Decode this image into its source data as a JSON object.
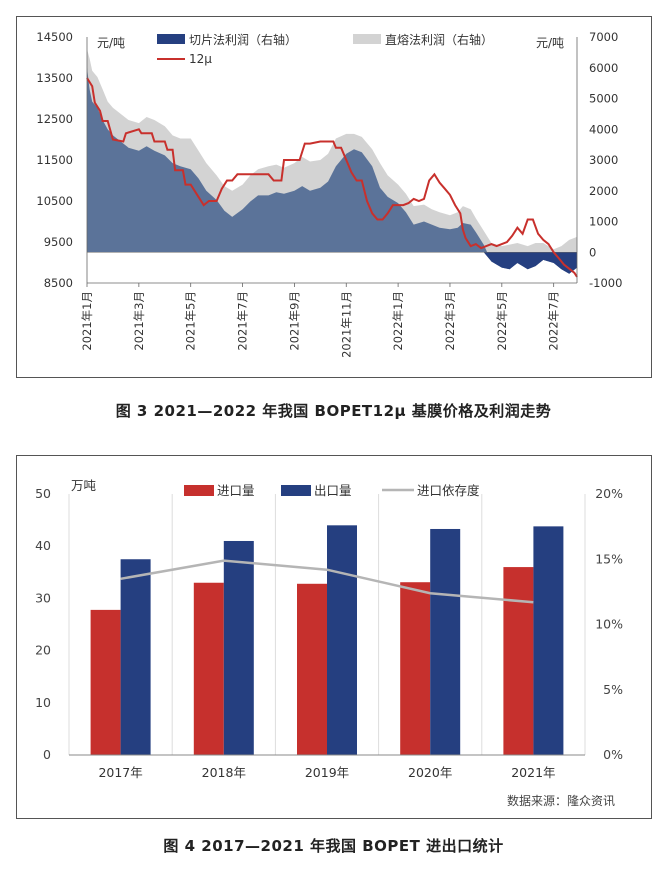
{
  "chart_data": [
    {
      "type": "area",
      "caption": "图 3  2021—2022 年我国 BOPET12μ 基膜价格及利润走势",
      "left_unit": "元/吨",
      "right_unit": "元/吨",
      "left_ticks": [
        "14500",
        "13500",
        "12500",
        "11500",
        "10500",
        "9500",
        "8500"
      ],
      "right_ticks": [
        "7000",
        "6000",
        "5000",
        "4000",
        "3000",
        "2000",
        "1000",
        "0",
        "-1000"
      ],
      "ylim_left": [
        8500,
        14500
      ],
      "ylim_right": [
        -1000,
        7000
      ],
      "x_ticks": [
        "2021年1月",
        "2021年3月",
        "2021年5月",
        "2021年7月",
        "2021年9月",
        "2021年11月",
        "2022年1月",
        "2022年3月",
        "2022年5月",
        "2022年7月"
      ],
      "legend": [
        "切片法利润（右轴）",
        "直熔法利润（右轴）",
        "12μ"
      ],
      "colors": {
        "slice": "#5b7399",
        "slice_neg": "#253f80",
        "direct": "#d3d3d3",
        "price": "#c8302c"
      },
      "series": [
        {
          "name": "切片法利润（右轴）",
          "axis": "right",
          "x": [
            0,
            0.1,
            0.2,
            0.4,
            0.6,
            0.8,
            1,
            1.3,
            1.6,
            2,
            2.3,
            2.6,
            3,
            3.3,
            3.6,
            4,
            4.3,
            4.6,
            5,
            5.3,
            5.6,
            6,
            6.3,
            6.6,
            7,
            7.3,
            7.6,
            8,
            8.3,
            8.6,
            9,
            9.3,
            9.6,
            10,
            10.3,
            10.6,
            11,
            11.3,
            11.6,
            12,
            12.3,
            12.6,
            13,
            13.3,
            13.6,
            14,
            14.3,
            14.5,
            14.8,
            15,
            15.3,
            15.6,
            16,
            16.3,
            16.6,
            17,
            17.3,
            17.6,
            18,
            18.3,
            18.6,
            18.9
          ],
          "values": [
            6000,
            5300,
            4900,
            4700,
            4300,
            4000,
            3800,
            3600,
            3400,
            3300,
            3450,
            3300,
            3150,
            2900,
            2800,
            2700,
            2400,
            2000,
            1700,
            1350,
            1150,
            1400,
            1650,
            1850,
            1850,
            1950,
            1900,
            2000,
            2150,
            2000,
            2100,
            2300,
            2800,
            3200,
            3350,
            3250,
            2800,
            2100,
            1800,
            1600,
            1300,
            900,
            1000,
            900,
            800,
            750,
            800,
            950,
            900,
            650,
            250,
            -300,
            -500,
            -550,
            -350,
            -550,
            -450,
            -250,
            -350,
            -550,
            -700,
            -500
          ]
        },
        {
          "name": "直熔法利润（右轴）",
          "axis": "right",
          "x": [
            0,
            0.1,
            0.2,
            0.4,
            0.6,
            0.8,
            1,
            1.3,
            1.6,
            2,
            2.3,
            2.6,
            3,
            3.3,
            3.6,
            4,
            4.3,
            4.6,
            5,
            5.3,
            5.6,
            6,
            6.3,
            6.6,
            7,
            7.3,
            7.6,
            8,
            8.3,
            8.6,
            9,
            9.3,
            9.6,
            10,
            10.3,
            10.6,
            11,
            11.3,
            11.6,
            12,
            12.3,
            12.6,
            13,
            13.3,
            13.6,
            14,
            14.3,
            14.5,
            14.8,
            15,
            15.3,
            15.6,
            16,
            16.3,
            16.6,
            17,
            17.3,
            17.6,
            18,
            18.3,
            18.6,
            18.9
          ],
          "values": [
            6600,
            6300,
            5900,
            5700,
            5300,
            4900,
            4700,
            4500,
            4300,
            4200,
            4400,
            4300,
            4100,
            3800,
            3700,
            3700,
            3300,
            2900,
            2500,
            2150,
            2000,
            2200,
            2500,
            2700,
            2800,
            2850,
            2750,
            2900,
            3100,
            2950,
            3000,
            3200,
            3700,
            3850,
            3850,
            3750,
            3350,
            2900,
            2500,
            2200,
            1900,
            1500,
            1550,
            1400,
            1300,
            1200,
            1300,
            1500,
            1400,
            1100,
            700,
            300,
            200,
            250,
            300,
            200,
            300,
            300,
            100,
            200,
            400,
            500
          ]
        },
        {
          "name": "12μ",
          "axis": "left",
          "x": [
            0,
            0.2,
            0.3,
            0.5,
            0.6,
            0.8,
            1,
            1.4,
            1.5,
            2,
            2.1,
            2.5,
            2.6,
            3,
            3.1,
            3.3,
            3.4,
            3.7,
            3.8,
            4,
            4.2,
            4.5,
            4.7,
            5,
            5.2,
            5.4,
            5.6,
            5.8,
            6,
            6.2,
            6.4,
            6.6,
            7,
            7.2,
            7.5,
            7.6,
            8,
            8.2,
            8.4,
            8.6,
            9,
            9.5,
            9.6,
            9.8,
            10,
            10.2,
            10.4,
            10.6,
            10.8,
            11,
            11.2,
            11.4,
            11.6,
            11.8,
            12,
            12.2,
            12.4,
            12.6,
            12.8,
            13,
            13.2,
            13.4,
            13.6,
            13.8,
            14,
            14.2,
            14.4,
            14.5,
            14.6,
            14.8,
            15,
            15.2,
            15.4,
            15.6,
            15.8,
            16,
            16.2,
            16.4,
            16.6,
            16.8,
            17,
            17.2,
            17.4,
            17.6,
            17.8,
            18,
            18.2,
            18.4,
            18.6,
            18.8,
            18.9
          ],
          "values": [
            13500,
            13300,
            12900,
            12700,
            12450,
            12450,
            12000,
            11950,
            12150,
            12250,
            12150,
            12150,
            11950,
            11950,
            11750,
            11750,
            11250,
            11250,
            10900,
            10900,
            10700,
            10400,
            10500,
            10500,
            10800,
            11000,
            11000,
            11150,
            11150,
            11150,
            11150,
            11150,
            11150,
            11000,
            11000,
            11500,
            11500,
            11500,
            11900,
            11900,
            11950,
            11950,
            11800,
            11800,
            11500,
            11200,
            11000,
            11000,
            10500,
            10200,
            10050,
            10050,
            10200,
            10400,
            10400,
            10400,
            10450,
            10550,
            10500,
            10550,
            11000,
            11150,
            10950,
            10800,
            10650,
            10400,
            10200,
            9800,
            9600,
            9400,
            9450,
            9350,
            9400,
            9450,
            9400,
            9450,
            9500,
            9650,
            9850,
            9700,
            10050,
            10050,
            9700,
            9550,
            9450,
            9250,
            9100,
            8950,
            8850,
            8750,
            8650
          ]
        }
      ]
    },
    {
      "type": "bar",
      "caption": "图 4  2017—2021 年我国 BOPET 进出口统计",
      "left_unit": "万吨",
      "categories": [
        "2017年",
        "2018年",
        "2019年",
        "2020年",
        "2021年"
      ],
      "left_ticks": [
        "0",
        "10",
        "20",
        "30",
        "40",
        "50"
      ],
      "right_ticks": [
        "0%",
        "5%",
        "10%",
        "15%",
        "20%"
      ],
      "ylim_left": [
        0,
        50
      ],
      "ylim_right": [
        0,
        20
      ],
      "legend": [
        "进口量",
        "出口量",
        "进口依存度"
      ],
      "colors": {
        "import": "#c6302d",
        "export": "#253f80",
        "dependency": "#b5b5b5"
      },
      "series": [
        {
          "name": "进口量",
          "axis": "left",
          "values": [
            27.8,
            33.0,
            32.8,
            33.1,
            36.0
          ]
        },
        {
          "name": "出口量",
          "axis": "left",
          "values": [
            37.5,
            41.0,
            44.0,
            43.3,
            43.8
          ]
        },
        {
          "name": "进口依存度",
          "axis": "right",
          "values": [
            13.5,
            14.9,
            14.2,
            12.4,
            11.7
          ]
        }
      ],
      "source": "数据来源：隆众资讯"
    }
  ]
}
